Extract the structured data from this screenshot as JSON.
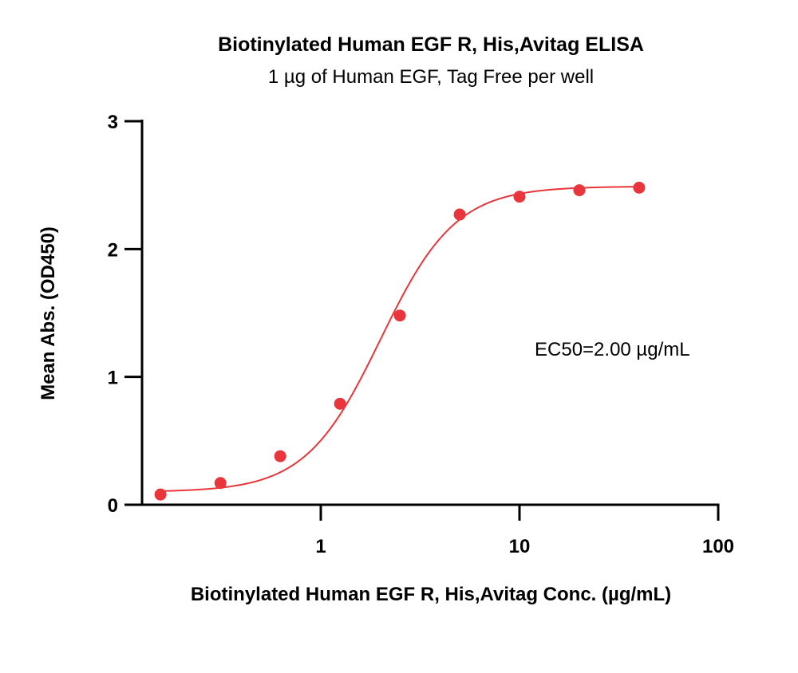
{
  "chart_data": {
    "type": "scatter",
    "title": "Biotinylated Human EGF R, His,Avitag ELISA",
    "subtitle": "1 µg of Human EGF, Tag Free per well",
    "xlabel": "Biotinylated Human EGF R, His,Avitag Conc. (µg/mL)",
    "ylabel": "Mean Abs. (OD450)",
    "x_scale": "log",
    "xlim": [
      0.1,
      100
    ],
    "ylim": [
      0,
      3
    ],
    "x_ticks": [
      {
        "value": 1,
        "label": "1"
      },
      {
        "value": 10,
        "label": "10"
      },
      {
        "value": 100,
        "label": "100"
      }
    ],
    "y_ticks": [
      {
        "value": 0,
        "label": "0"
      },
      {
        "value": 1,
        "label": "1"
      },
      {
        "value": 2,
        "label": "2"
      },
      {
        "value": 3,
        "label": "3"
      }
    ],
    "grid": false,
    "annotation": "EC50=2.00 µg/mL",
    "color": "#e8363c",
    "points": [
      {
        "x": 0.156,
        "y": 0.08
      },
      {
        "x": 0.3125,
        "y": 0.17
      },
      {
        "x": 0.625,
        "y": 0.38
      },
      {
        "x": 1.25,
        "y": 0.79
      },
      {
        "x": 2.5,
        "y": 1.48
      },
      {
        "x": 5,
        "y": 2.27
      },
      {
        "x": 10,
        "y": 2.41
      },
      {
        "x": 20,
        "y": 2.46
      },
      {
        "x": 40,
        "y": 2.48
      }
    ],
    "fit": {
      "model": "4PL",
      "bottom": 0.1,
      "top": 2.49,
      "ec50": 2.0,
      "hill": 2.3
    }
  }
}
